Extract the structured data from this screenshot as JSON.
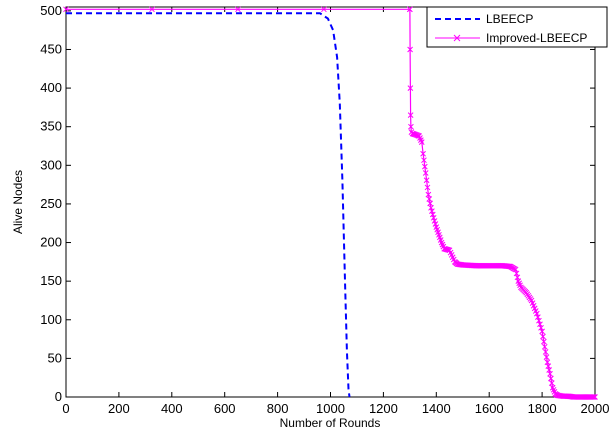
{
  "chart_data": {
    "type": "line",
    "title": "",
    "xlabel": "Number of Rounds",
    "ylabel": "Alive Nodes",
    "xlim": [
      0,
      2000
    ],
    "ylim": [
      0,
      505
    ],
    "xticks": [
      0,
      200,
      400,
      600,
      800,
      1000,
      1200,
      1400,
      1600,
      1800,
      2000
    ],
    "yticks": [
      0,
      50,
      100,
      150,
      200,
      250,
      300,
      350,
      400,
      450,
      500
    ],
    "grid": false,
    "legend_position": "top-right",
    "series": [
      {
        "name": "LBEECP",
        "color": "#0000ff",
        "style": "dashed",
        "marker": "none",
        "x": [
          0,
          960,
          990,
          1010,
          1025,
          1035,
          1045,
          1055,
          1062,
          1068,
          1072
        ],
        "y": [
          497,
          497,
          490,
          475,
          440,
          380,
          280,
          150,
          60,
          10,
          0
        ]
      },
      {
        "name": "Improved-LBEECP",
        "color": "#ff00ff",
        "style": "solid",
        "marker": "x",
        "x": [
          0,
          1300,
          1301,
          1302,
          1303,
          1304,
          1306,
          1310,
          1320,
          1335,
          1345,
          1350,
          1360,
          1370,
          1380,
          1390,
          1400,
          1410,
          1420,
          1430,
          1450,
          1470,
          1480,
          1500,
          1550,
          1600,
          1650,
          1680,
          1700,
          1710,
          1720,
          1740,
          1760,
          1780,
          1800,
          1810,
          1820,
          1830,
          1840,
          1850,
          1860,
          1880,
          1900,
          1920,
          1940,
          1960,
          1980,
          2000
        ],
        "y": [
          502,
          502,
          450,
          400,
          365,
          350,
          343,
          341,
          340,
          338,
          330,
          315,
          290,
          262,
          245,
          232,
          220,
          210,
          200,
          192,
          190,
          175,
          172,
          171,
          170,
          170,
          170,
          169,
          165,
          150,
          142,
          135,
          125,
          108,
          85,
          65,
          45,
          30,
          12,
          4,
          2,
          1,
          1,
          0,
          0,
          0,
          0,
          0
        ]
      }
    ]
  }
}
